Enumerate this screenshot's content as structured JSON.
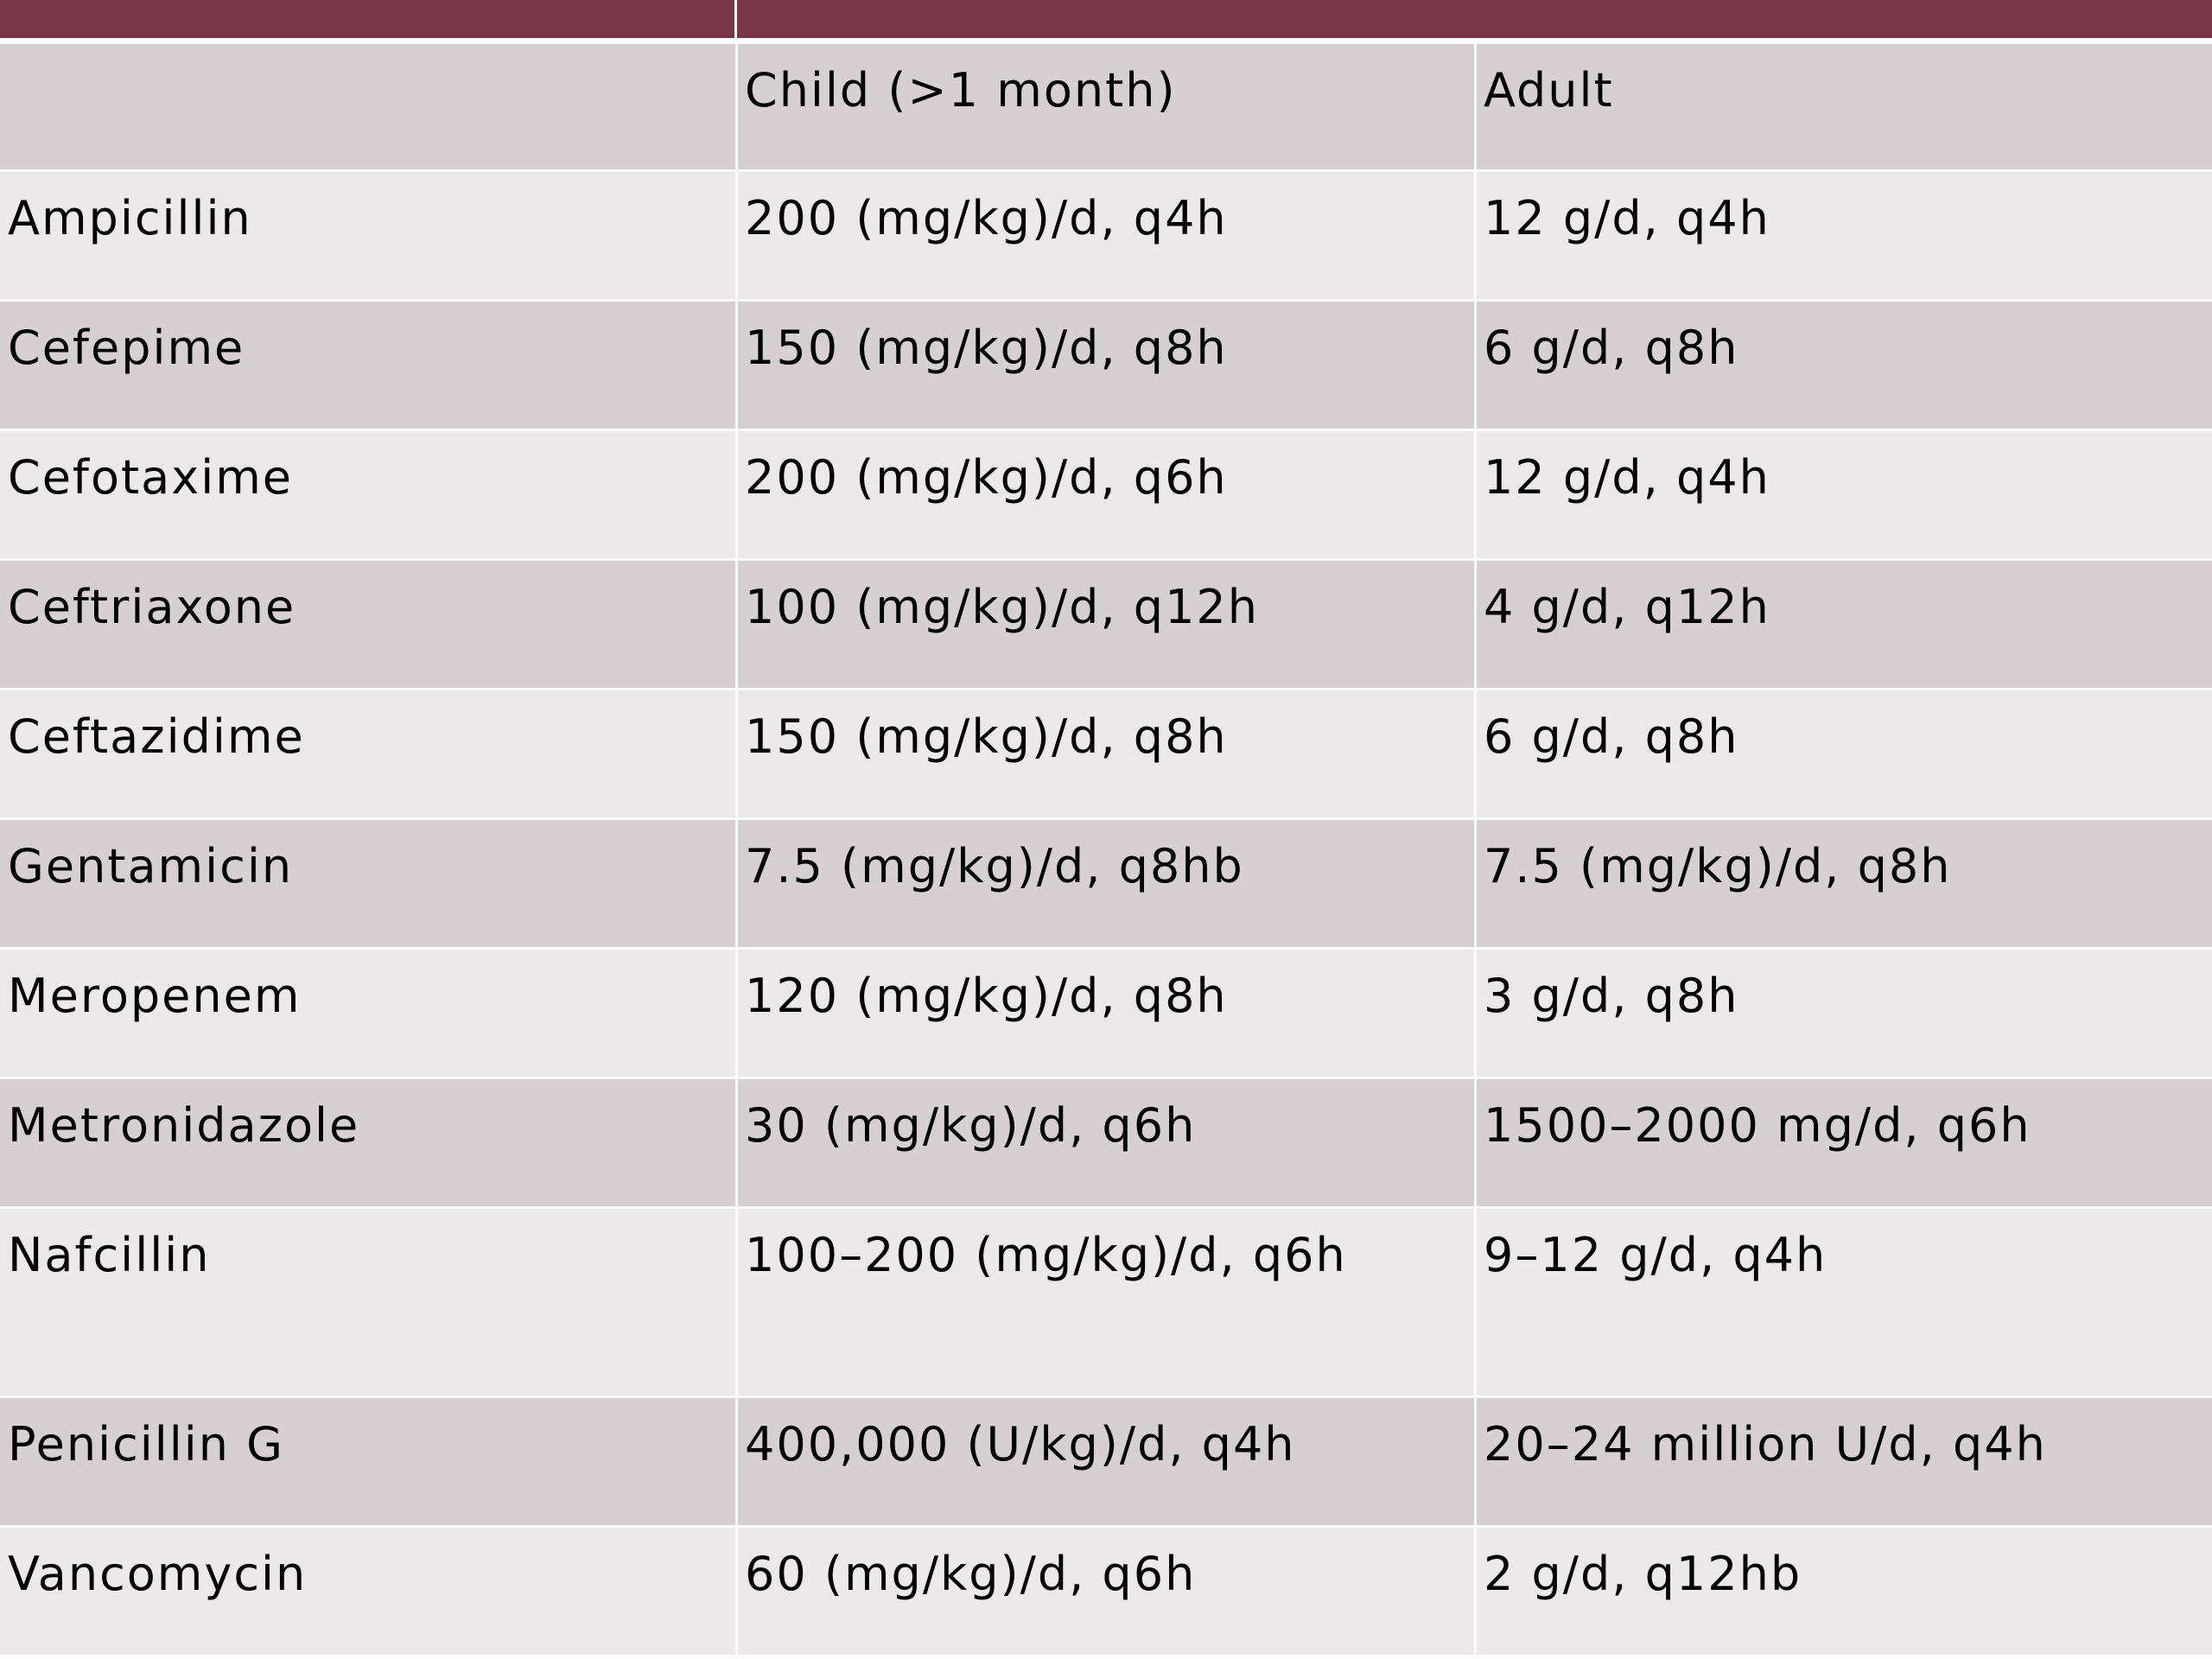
{
  "colors": {
    "header_bar": "#7a3649",
    "row_dark": "#d6d0d2",
    "row_light": "#ebe9ea"
  },
  "table": {
    "columns": [
      "",
      "Child (>1 month)",
      "Adult"
    ],
    "rows": [
      [
        "Ampicillin",
        "200 (mg/kg)/d, q4h",
        "12 g/d, q4h"
      ],
      [
        "Cefepime",
        "150 (mg/kg)/d, q8h",
        "6 g/d, q8h"
      ],
      [
        "Cefotaxime",
        "200 (mg/kg)/d, q6h",
        "12 g/d, q4h"
      ],
      [
        "Ceftriaxone",
        "100 (mg/kg)/d, q12h",
        "4 g/d, q12h"
      ],
      [
        "Ceftazidime",
        "150 (mg/kg)/d, q8h",
        "6 g/d, q8h"
      ],
      [
        "Gentamicin",
        "7.5 (mg/kg)/d, q8hb",
        "7.5 (mg/kg)/d, q8h"
      ],
      [
        "Meropenem",
        "120 (mg/kg)/d, q8h",
        "3 g/d, q8h"
      ],
      [
        "Metronidazole",
        "30 (mg/kg)/d, q6h",
        "1500–2000 mg/d, q6h"
      ],
      [
        "Nafcillin",
        "100–200 (mg/kg)/d, q6h",
        "9–12 g/d, q4h"
      ],
      [
        "Penicillin G",
        "400,000 (U/kg)/d, q4h",
        "20–24 million U/d, q4h"
      ],
      [
        "Vancomycin",
        "60 (mg/kg)/d, q6h",
        "2 g/d, q12hb"
      ]
    ]
  }
}
